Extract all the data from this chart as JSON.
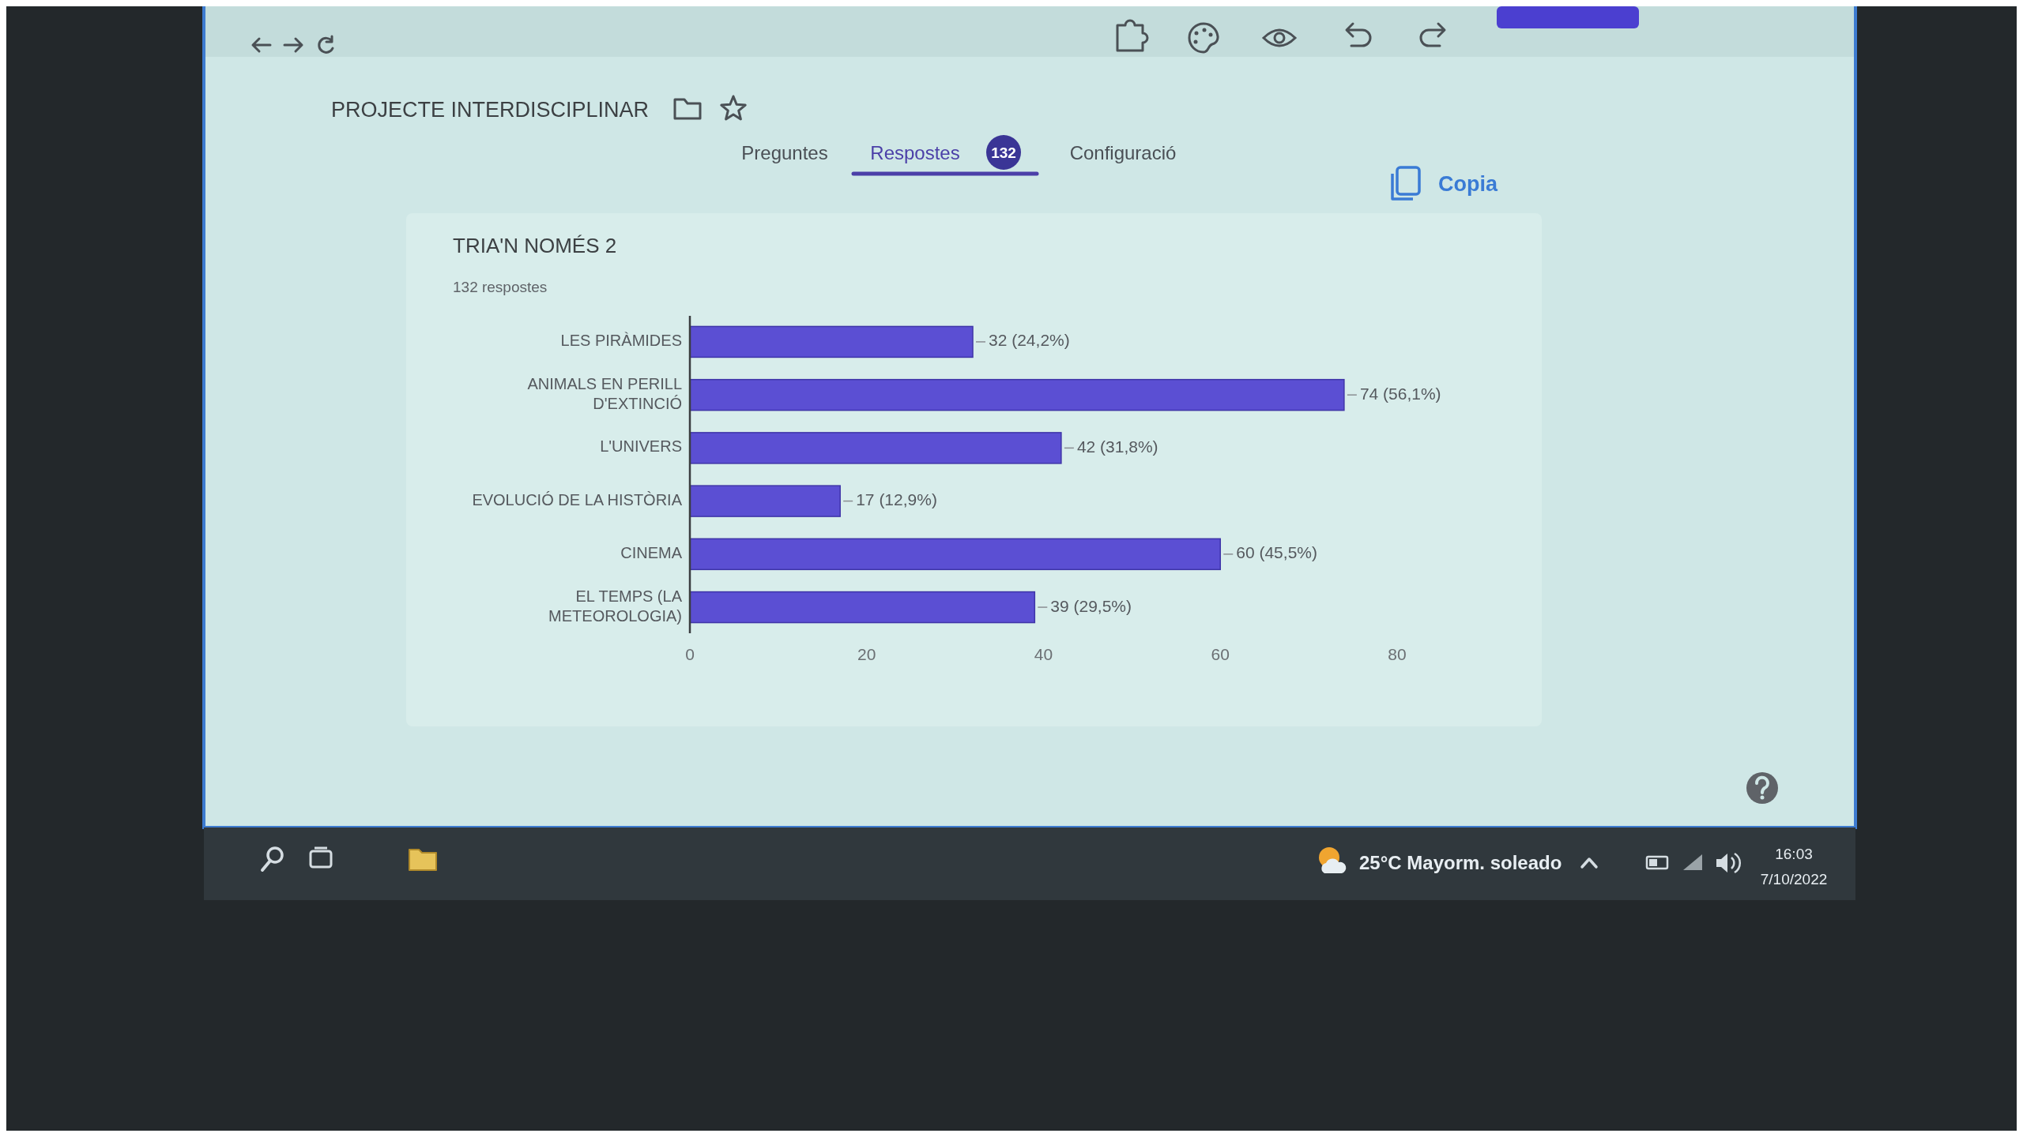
{
  "chart_data": {
    "type": "bar",
    "orientation": "horizontal",
    "title": "TRIA'N NOMÉS 2",
    "subtitle": "132 respostes",
    "categories": [
      "LES PIRÀMIDES",
      "ANIMALS EN PERILL D'EXTINCIÓ",
      "L'UNIVERS",
      "EVOLUCIÓ DE LA HISTÒRIA",
      "CINEMA",
      "EL TEMPS (LA METEOROLOGIA)"
    ],
    "values": [
      32,
      74,
      42,
      17,
      60,
      39
    ],
    "value_labels": [
      "32 (24,2%)",
      "74 (56,1%)",
      "42 (31,8%)",
      "17 (12,9%)",
      "60 (45,5%)",
      "39 (29,5%)"
    ],
    "color": "#5b4fd3",
    "xlim": [
      0,
      80
    ],
    "xticks": [
      0,
      20,
      40,
      60,
      80
    ],
    "annotations": [
      "PROJECTE INTERDISCIPLINAR",
      "Preguntes",
      "Respostes",
      "132",
      "Configuració",
      "Copia",
      "25°C Mayorm. soleado",
      "16:03",
      "7/10/2022"
    ]
  }
}
